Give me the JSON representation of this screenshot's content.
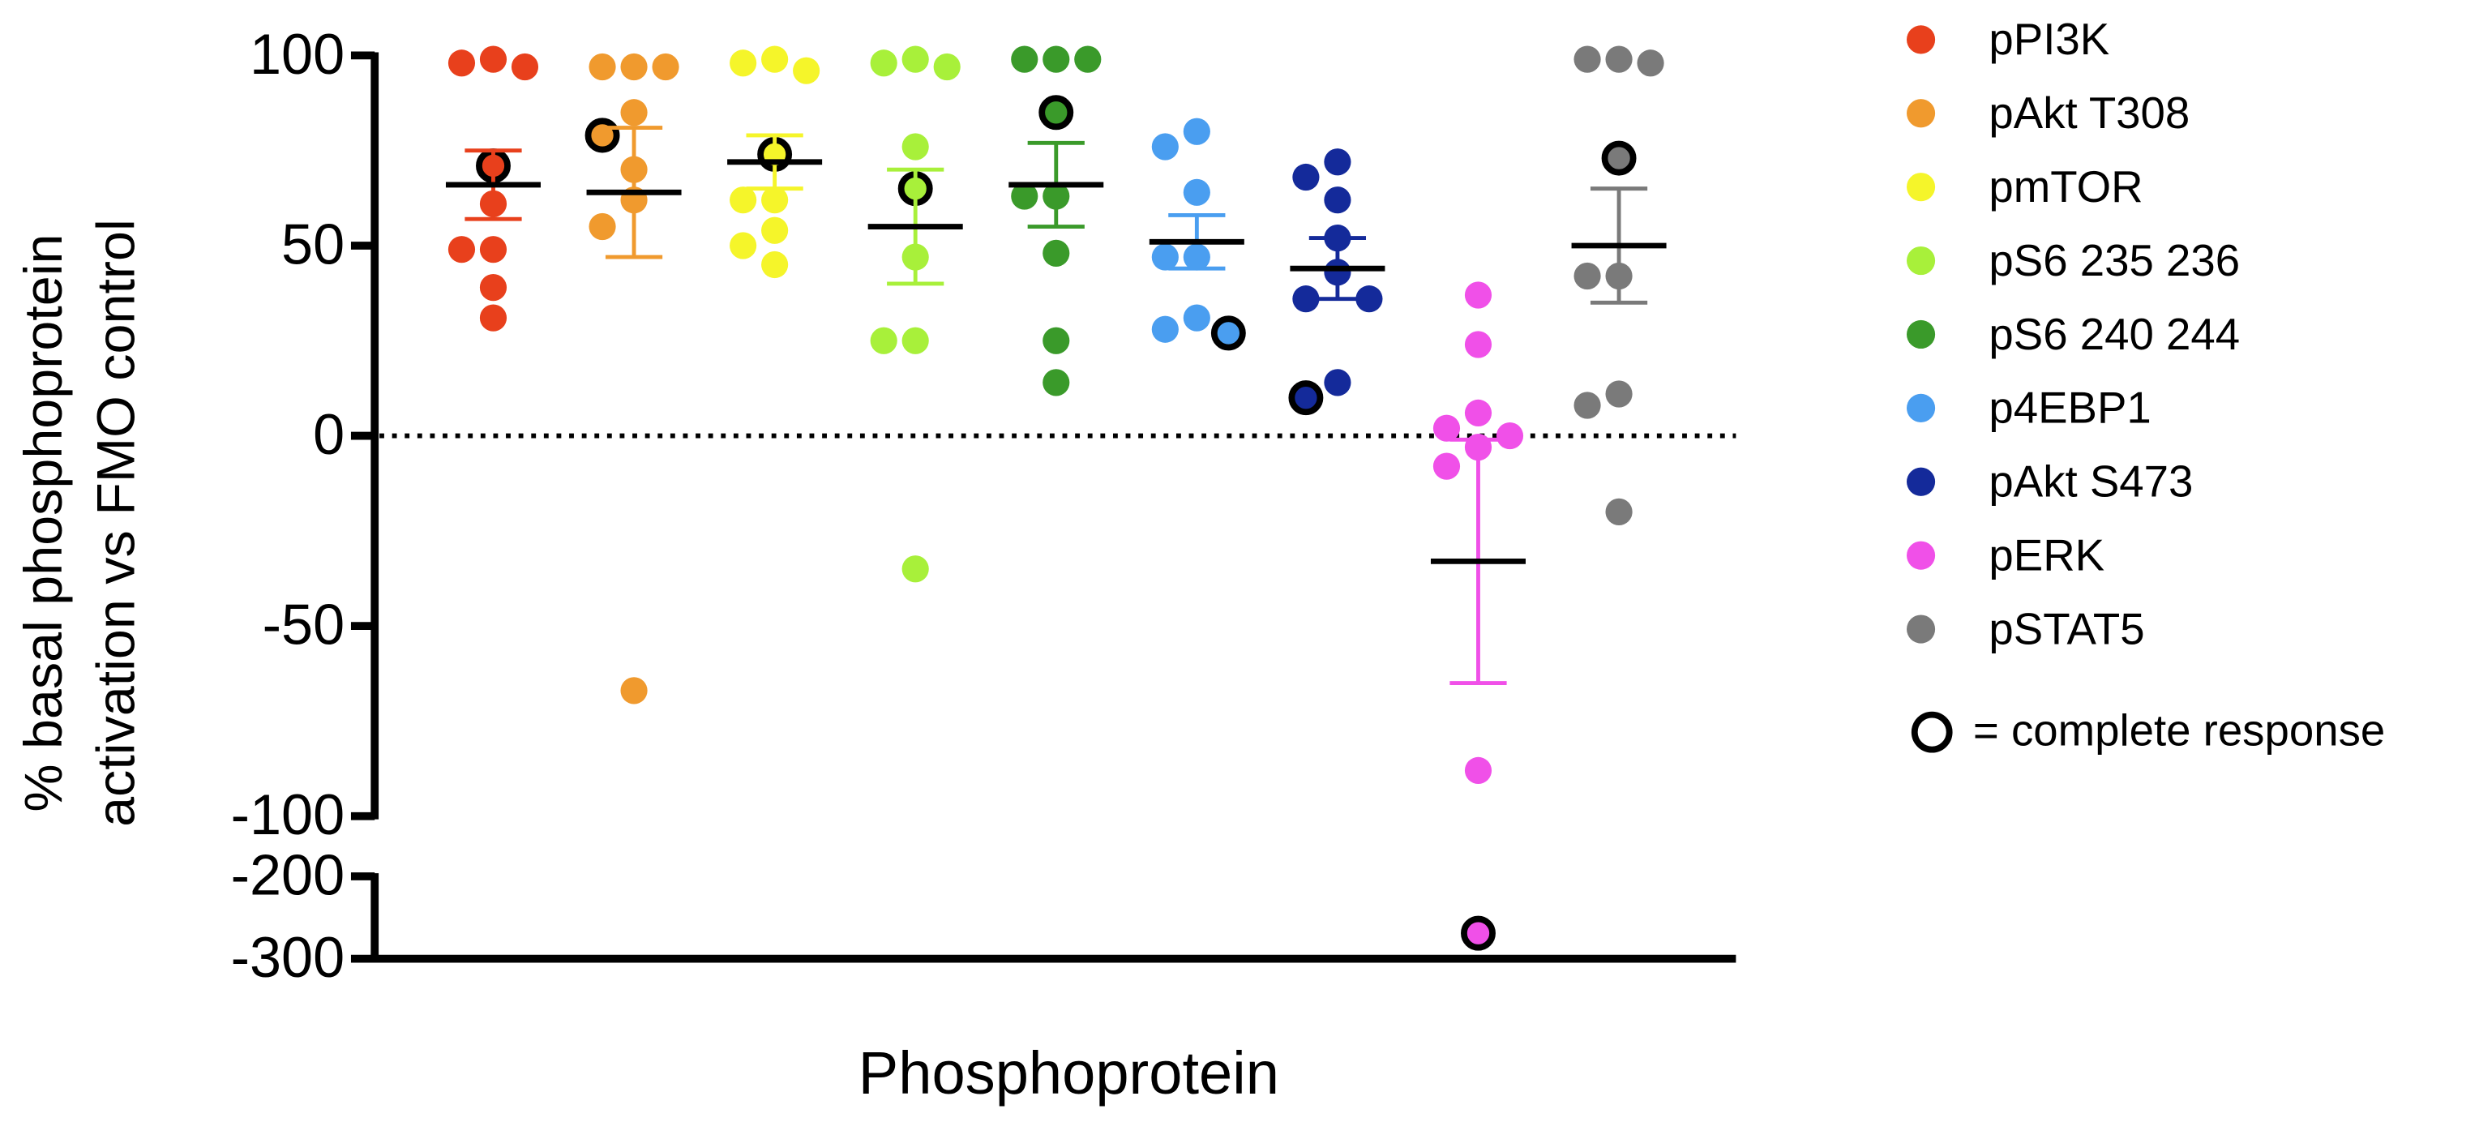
{
  "chart_data": {
    "type": "dot",
    "x_label": "Phosphoprotein",
    "y_label": [
      "% basal phosphoprotein",
      "activation vs FMO control"
    ],
    "ysegments": [
      {
        "lim": [
          -100,
          100
        ]
      },
      {
        "lim": [
          -300,
          -200
        ]
      }
    ],
    "yticks": [
      100,
      50,
      0,
      -50,
      -100,
      -200,
      -300
    ],
    "reference_line": 0,
    "legend_note": "= complete response",
    "series": [
      {
        "name": "pPI3K",
        "color": "#e8401c",
        "values": [
          98,
          99,
          97,
          61,
          49,
          49,
          39,
          31
        ],
        "complete": [
          71
        ],
        "mean": 66,
        "sem": 9
      },
      {
        "name": "pAkt T308",
        "color": "#f09a2e",
        "values": [
          97,
          97,
          97,
          85,
          70,
          62,
          55,
          -67
        ],
        "complete": [
          79
        ],
        "mean": 64,
        "sem": 17
      },
      {
        "name": "pmTOR",
        "color": "#f5f52a",
        "values": [
          98,
          99,
          96,
          62,
          62,
          54,
          50,
          45
        ],
        "complete": [
          74
        ],
        "mean": 72,
        "sem": 7
      },
      {
        "name": "pS6 235 236",
        "color": "#a8f03a",
        "values": [
          98,
          99,
          97,
          76,
          47,
          25,
          25,
          -35
        ],
        "complete": [
          65
        ],
        "mean": 55,
        "sem": 15
      },
      {
        "name": "pS6 240 244",
        "color": "#3a9a2a",
        "values": [
          99,
          99,
          99,
          63,
          63,
          48,
          25,
          14
        ],
        "complete": [
          85
        ],
        "mean": 66,
        "sem": 11
      },
      {
        "name": "p4EBP1",
        "color": "#4a9ef0",
        "values": [
          80,
          76,
          64,
          47,
          47,
          31,
          28
        ],
        "complete": [
          27
        ],
        "mean": 51,
        "sem": 7
      },
      {
        "name": "pAkt S473",
        "color": "#142a9a",
        "values": [
          72,
          68,
          62,
          52,
          43,
          36,
          36,
          14
        ],
        "complete": [
          10
        ],
        "mean": 44,
        "sem": 8
      },
      {
        "name": "pERK",
        "color": "#f050e8",
        "values": [
          37,
          24,
          6,
          2,
          0,
          -3,
          -8,
          -88
        ],
        "complete": [
          -269
        ],
        "mean": -33,
        "sem": 32
      },
      {
        "name": "pSTAT5",
        "color": "#7a7a7a",
        "values": [
          98,
          99,
          99,
          42,
          42,
          11,
          8,
          -20
        ],
        "complete": [
          73
        ],
        "mean": 50,
        "sem": 15
      }
    ]
  }
}
